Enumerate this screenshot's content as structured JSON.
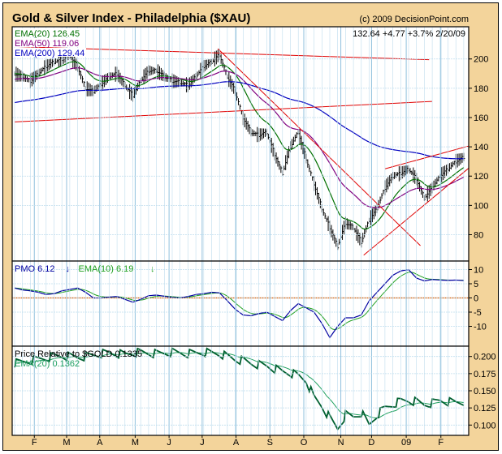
{
  "header": {
    "title": "Gold & Silver Index - Philadelphia ($XAU)",
    "copyright": "(c) 2009 DecisionPoint.com"
  },
  "colors": {
    "frame": "#F3D49B",
    "price": "#000000",
    "ema20": "#007000",
    "ema50": "#800080",
    "ema200": "#0000C0",
    "trend": "#E00000",
    "pmo": "#0000A0",
    "pmo_ema": "#20A020",
    "zero": "#E06000",
    "rel": "#006030",
    "rel_ema": "#20A060",
    "grid": "#BFDDEE"
  },
  "chart_data": [
    {
      "type": "ohlc-line",
      "name": "price",
      "title": "Gold & Silver Index - Philadelphia ($XAU)",
      "last_quote": "132.64  +4.77  +3.7%  2/20/09",
      "legend": [
        {
          "label": "EMA(20) 126.45",
          "series": "ema20"
        },
        {
          "label": "EMA(50) 119.06",
          "series": "ema50"
        },
        {
          "label": "EMA(200) 129.44",
          "series": "ema200"
        }
      ],
      "ylim": [
        62,
        222
      ],
      "yticks": [
        80,
        100,
        120,
        140,
        160,
        180,
        200
      ],
      "x_unit": "week",
      "weekly_close": [
        190,
        188,
        185,
        190,
        195,
        198,
        200,
        202,
        195,
        180,
        178,
        183,
        188,
        190,
        182,
        175,
        185,
        192,
        192,
        188,
        185,
        184,
        182,
        188,
        195,
        198,
        203,
        188,
        178,
        160,
        150,
        148,
        150,
        135,
        122,
        140,
        150,
        132,
        115,
        98,
        85,
        72,
        88,
        85,
        75,
        90,
        98,
        112,
        120,
        122,
        125,
        118,
        105,
        112,
        120,
        125,
        130,
        133
      ],
      "ema_seed": {
        "ema20": 190,
        "ema50": 186,
        "ema200": 170
      },
      "trendlines": [
        [
          0,
          208.5,
          52.6,
          199.5
        ],
        [
          0,
          157,
          53,
          171
        ],
        [
          25.8,
          207,
          51.5,
          72.5
        ],
        [
          47,
          125,
          60,
          144
        ],
        [
          44.3,
          66,
          60,
          136
        ]
      ]
    },
    {
      "type": "line",
      "name": "pmo",
      "legend": [
        {
          "label": "PMO  6.12",
          "series": "pmo"
        },
        {
          "label": "EMA(10)  6.19",
          "series": "pmo_ema"
        }
      ],
      "ylim": [
        -17,
        13
      ],
      "yticks": [
        10,
        5,
        0,
        -5,
        -10
      ],
      "weekly_pmo": [
        3.5,
        2.8,
        2.5,
        2.0,
        1.2,
        1.5,
        2.5,
        3.0,
        3.5,
        2.0,
        0,
        0,
        0.3,
        0.5,
        -0.5,
        -1.5,
        -0.5,
        0.8,
        1.0,
        0.6,
        0.2,
        0,
        0.5,
        1.2,
        1.5,
        2.0,
        1.8,
        -1.0,
        -4.0,
        -6.0,
        -6.3,
        -5.5,
        -5.0,
        -6.5,
        -8.0,
        -4.5,
        -2.0,
        -3.5,
        -5.0,
        -9.0,
        -14,
        -10,
        -7,
        -7,
        -6,
        -1,
        2,
        5,
        8,
        9.5,
        10,
        7,
        6,
        6.5,
        6.3,
        6.2,
        6.3,
        6.12
      ]
    },
    {
      "type": "line",
      "name": "relative",
      "legend": [
        {
          "label": "Price Relative to $GOLD  0.1335",
          "series": "rel"
        },
        {
          "label": "EMA(20) 0.1362",
          "series": "rel_ema"
        }
      ],
      "ylim": [
        0.085,
        0.215
      ],
      "yticks": [
        0.2,
        0.175,
        0.15,
        0.125,
        0.1
      ],
      "ytick_labels": [
        "0.200",
        "0.175",
        "0.150",
        "0.125",
        "0.100"
      ],
      "weekly_rel": [
        0.19,
        0.192,
        0.194,
        0.196,
        0.198,
        0.2,
        0.201,
        0.2,
        0.199,
        0.2,
        0.202,
        0.204,
        0.205,
        0.204,
        0.203,
        0.205,
        0.206,
        0.205,
        0.204,
        0.205,
        0.206,
        0.205,
        0.204,
        0.205,
        0.206,
        0.205,
        0.204,
        0.2,
        0.196,
        0.194,
        0.19,
        0.188,
        0.186,
        0.182,
        0.178,
        0.176,
        0.172,
        0.165,
        0.14,
        0.128,
        0.11,
        0.095,
        0.115,
        0.112,
        0.118,
        0.1,
        0.115,
        0.125,
        0.13,
        0.135,
        0.136,
        0.134,
        0.13,
        0.132,
        0.136,
        0.134,
        0.133,
        0.1335
      ]
    },
    {
      "type": "axis",
      "name": "x-axis",
      "months": [
        {
          "label": "F",
          "week": 2.5
        },
        {
          "label": "M",
          "week": 6.6
        },
        {
          "label": "A",
          "week": 10.8
        },
        {
          "label": "M",
          "week": 15.3
        },
        {
          "label": "J",
          "week": 19.6
        },
        {
          "label": "J",
          "week": 23.8
        },
        {
          "label": "A",
          "week": 28.1
        },
        {
          "label": "S",
          "week": 32.4
        },
        {
          "label": "O",
          "week": 36.7
        },
        {
          "label": "N",
          "week": 41.4
        },
        {
          "label": "D",
          "week": 45.3
        },
        {
          "label": "09",
          "week": 49.7
        },
        {
          "label": "F",
          "week": 54.1
        }
      ]
    }
  ]
}
